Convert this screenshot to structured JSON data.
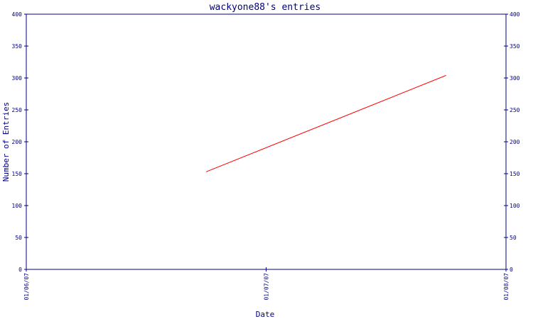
{
  "chart_data": {
    "type": "line",
    "title": "wackyone88's entries",
    "xlabel": "Date",
    "ylabel": "Number of Entries",
    "x_ticks": [
      "01/06/07",
      "01/07/07",
      "01/08/07"
    ],
    "x_range": [
      "01/06/07",
      "01/08/07"
    ],
    "ylim": [
      0,
      400
    ],
    "y_ticks": [
      0,
      50,
      100,
      150,
      200,
      250,
      300,
      350,
      400
    ],
    "y_axis_right": true,
    "grid": false,
    "series": [
      {
        "color": "#ff0000",
        "points": [
          {
            "x": "01/06/07 18:00",
            "y": 153
          },
          {
            "x": "01/07/07 18:00",
            "y": 304
          }
        ]
      }
    ],
    "colors": {
      "axis": "#000080",
      "text": "#000080",
      "line": "#ff0000"
    }
  }
}
